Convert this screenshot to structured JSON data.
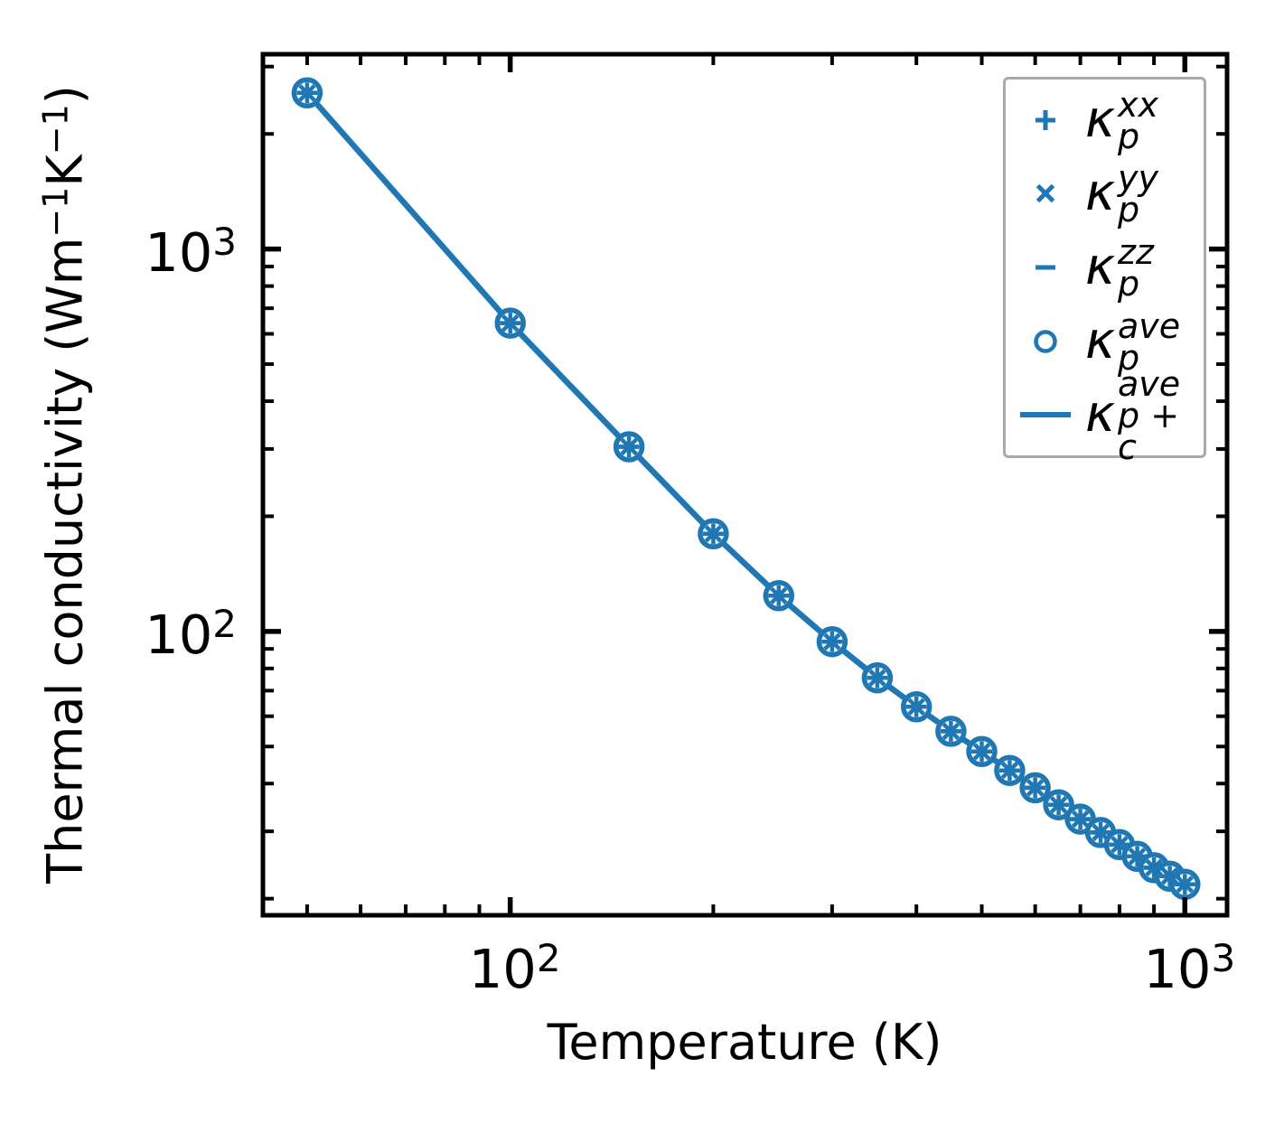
{
  "figure": {
    "background": "#ffffff"
  },
  "chart_data": {
    "type": "line",
    "title": "",
    "xlabel": "Temperature (K)",
    "ylabel_parts": {
      "prefix": "Thermal conductivity (Wm",
      "sup1": "−1",
      "mid": "K",
      "sup2": "−1",
      "suffix": ")"
    },
    "x_scale": "log",
    "y_scale": "log",
    "xlim": [
      43,
      1155
    ],
    "ylim": [
      18.1,
      3232
    ],
    "grid": false,
    "accent_color": "#1f77b4",
    "frame_color": "#000000",
    "legend_border_color": "#a9a9a9",
    "x": [
      50,
      100,
      150,
      200,
      250,
      300,
      350,
      400,
      450,
      500,
      550,
      600,
      650,
      700,
      750,
      800,
      850,
      900,
      950,
      1000
    ],
    "series": [
      {
        "name": "kappa_p_xx",
        "marker": "plus",
        "color": "#1f77b4",
        "values": [
          2560,
          640,
          304,
          180,
          124,
          94,
          75.6,
          63.5,
          54.8,
          48.5,
          43.3,
          39.0,
          35.2,
          32.3,
          29.8,
          27.7,
          25.8,
          24.1,
          22.9,
          21.8
        ]
      },
      {
        "name": "kappa_p_yy",
        "marker": "x",
        "color": "#1f77b4",
        "values": [
          2560,
          640,
          304,
          180,
          124,
          94,
          75.6,
          63.5,
          54.8,
          48.5,
          43.3,
          39.0,
          35.2,
          32.3,
          29.8,
          27.7,
          25.8,
          24.1,
          22.9,
          21.8
        ]
      },
      {
        "name": "kappa_p_zz",
        "marker": "hline",
        "color": "#1f77b4",
        "values": [
          2560,
          640,
          304,
          180,
          124,
          94,
          75.6,
          63.5,
          54.8,
          48.5,
          43.3,
          39.0,
          35.2,
          32.3,
          29.8,
          27.7,
          25.8,
          24.1,
          22.9,
          21.8
        ]
      },
      {
        "name": "kappa_p_ave",
        "marker": "circle",
        "color": "#1f77b4",
        "values": [
          2560,
          640,
          304,
          180,
          124,
          94,
          75.6,
          63.5,
          54.8,
          48.5,
          43.3,
          39.0,
          35.2,
          32.3,
          29.8,
          27.7,
          25.8,
          24.1,
          22.9,
          21.8
        ]
      },
      {
        "name": "kappa_p_plus_c_ave",
        "marker": "line",
        "color": "#1f77b4",
        "values": [
          2560,
          640,
          304,
          180,
          124,
          94,
          75.6,
          63.5,
          54.8,
          48.5,
          43.3,
          39.0,
          35.2,
          32.3,
          29.8,
          27.7,
          25.8,
          24.1,
          22.9,
          21.8
        ]
      }
    ],
    "x_major_ticks": [
      {
        "value": 100,
        "base": "10",
        "exp": "2"
      },
      {
        "value": 1000,
        "base": "10",
        "exp": "3"
      }
    ],
    "y_major_ticks": [
      {
        "value": 1000,
        "base": "10",
        "exp": "3"
      },
      {
        "value": 100,
        "base": "10",
        "exp": "2"
      }
    ],
    "legend": {
      "position": "upper right",
      "entries": [
        {
          "marker": "plus",
          "kappa": "κ",
          "sup": "xx",
          "sub": "p"
        },
        {
          "marker": "x",
          "kappa": "κ",
          "sup": "yy",
          "sub": "p"
        },
        {
          "marker": "hline",
          "kappa": "κ",
          "sup": "zz",
          "sub": "p"
        },
        {
          "marker": "circle",
          "kappa": "κ",
          "sup": "ave",
          "sub": "p"
        },
        {
          "marker": "line",
          "kappa": "κ",
          "sup": "ave",
          "sub": "p + c"
        }
      ]
    }
  }
}
